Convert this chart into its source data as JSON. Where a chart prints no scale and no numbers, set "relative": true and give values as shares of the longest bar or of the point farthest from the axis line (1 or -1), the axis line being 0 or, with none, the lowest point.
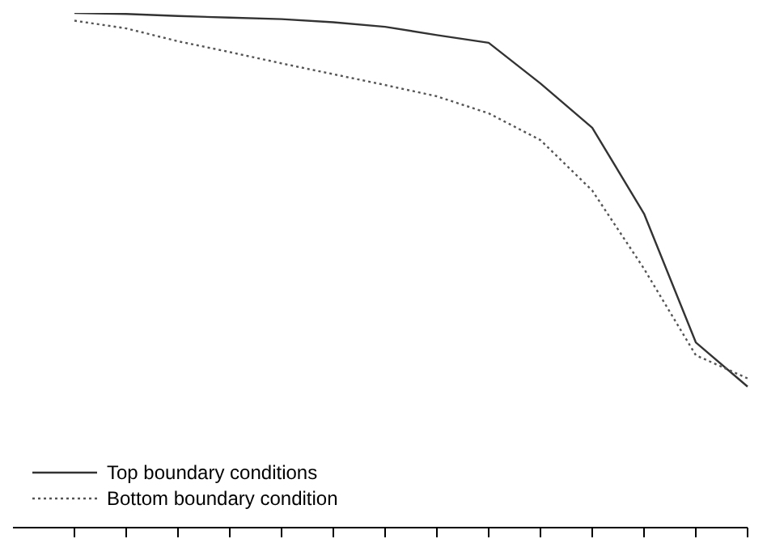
{
  "chart_data": {
    "type": "line",
    "relative": true,
    "categories": [
      null,
      null,
      null,
      null,
      null,
      null,
      null,
      null,
      null,
      null,
      null,
      null,
      null,
      null
    ],
    "series": [
      {
        "name": "Top boundary conditions",
        "color": "#333333",
        "line_style": "solid",
        "values": [
          1,
          0.998,
          0.994,
          0.991,
          0.988,
          0.982,
          0.973,
          0.957,
          0.942,
          0.863,
          0.777,
          0.61,
          0.36,
          0.274
        ]
      },
      {
        "name": "Bottom boundary condition",
        "color": "#555555",
        "line_style": "dotted",
        "values": [
          0.985,
          0.97,
          0.945,
          0.924,
          0.902,
          0.881,
          0.86,
          0.838,
          0.805,
          0.753,
          0.655,
          0.503,
          0.335,
          0.29
        ]
      }
    ],
    "legend": "bottom left",
    "marker": "none",
    "grid": false
  }
}
